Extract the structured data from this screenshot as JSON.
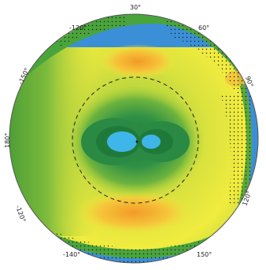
{
  "map": {
    "projection": "polar (azimuthal) view",
    "labels": {
      "top": "30°",
      "top_right": "60°",
      "right": "90°",
      "bottom_right": "120°",
      "bottom": "150°",
      "bottom_left": "-140°",
      "left_bottom": "-120°",
      "left": "180°",
      "left_top": "-150°",
      "top_left": "-120°"
    },
    "dashed_ring": "circle of constant latitude shown dashed",
    "stippling": "dotted areas denote significance",
    "colors": {
      "blue_low": "#2e7fd9",
      "cyan_center": "#3fb6e8",
      "dark_green": "#2e8b3e",
      "green": "#5aa83a",
      "light_green": "#a8cf3e",
      "yellow": "#f3ee3f",
      "orange": "#f4a72a"
    }
  }
}
